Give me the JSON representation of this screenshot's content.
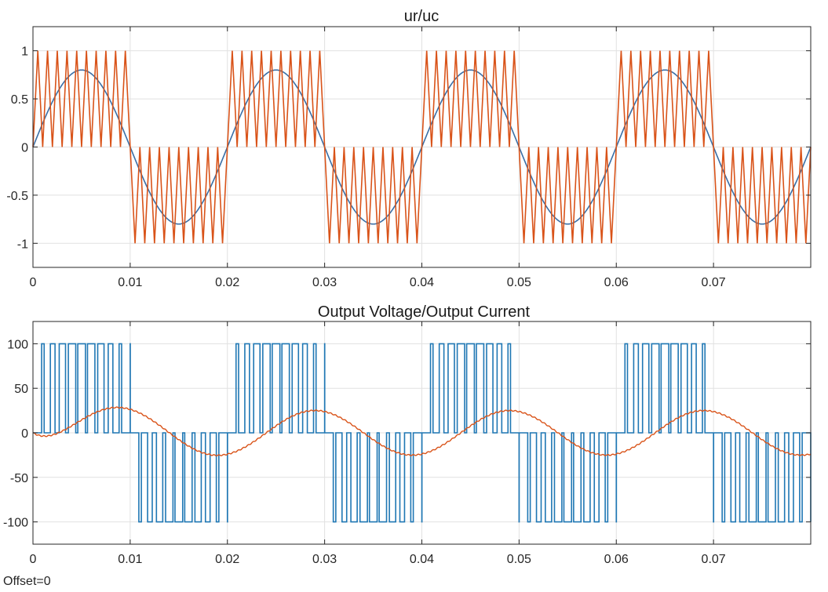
{
  "footer": "Offset=0",
  "colors": {
    "blue": "#1f77b4",
    "orange": "#d95319",
    "grid": "#e1e1e1",
    "axis": "#262626"
  },
  "chart_data": [
    {
      "type": "line",
      "title": "ur/uc",
      "xlabel": "",
      "ylabel": "",
      "xlim": [
        0,
        0.08
      ],
      "ylim": [
        -1.25,
        1.25
      ],
      "xticks": [
        0,
        0.01,
        0.02,
        0.03,
        0.04,
        0.05,
        0.06,
        0.07
      ],
      "xtick_labels": [
        "0",
        "0.01",
        "0.02",
        "0.03",
        "0.04",
        "0.05",
        "0.06",
        "0.07"
      ],
      "yticks": [
        1,
        0.5,
        0,
        -0.5,
        -1
      ],
      "ytick_labels": [
        "1",
        "0.5",
        "0",
        "-0.5",
        "-1"
      ],
      "grid": true,
      "series": [
        {
          "kind": "sine",
          "amplitude": 0.8,
          "frequency_hz": 50,
          "color": "#3a6ea5"
        },
        {
          "kind": "unipolar_triangle_carrier",
          "peak": 1,
          "carrier_frequency_hz": 1000,
          "polarity_follows_reference": true,
          "color": "#d95319"
        }
      ]
    },
    {
      "type": "line",
      "title": "Output Voltage/Output Current",
      "xlabel": "",
      "ylabel": "",
      "xlim": [
        0,
        0.08
      ],
      "ylim": [
        -125,
        125
      ],
      "xticks": [
        0,
        0.01,
        0.02,
        0.03,
        0.04,
        0.05,
        0.06,
        0.07
      ],
      "xtick_labels": [
        "0",
        "0.01",
        "0.02",
        "0.03",
        "0.04",
        "0.05",
        "0.06",
        "0.07"
      ],
      "yticks": [
        100,
        50,
        0,
        -50,
        -100
      ],
      "ytick_labels": [
        "100",
        "50",
        "0",
        "-50",
        "-100"
      ],
      "grid": true,
      "series": [
        {
          "kind": "unipolar_pwm_voltage",
          "level": 100,
          "carrier_frequency_hz": 1000,
          "modulation_index": 0.8,
          "frequency_hz": 50,
          "color": "#1f77b4"
        },
        {
          "kind": "load_current",
          "peak_first_cycle": 33,
          "peak_steady": 25,
          "frequency_hz": 50,
          "phase_lag_s": 0.004,
          "color": "#d95319"
        }
      ]
    }
  ]
}
